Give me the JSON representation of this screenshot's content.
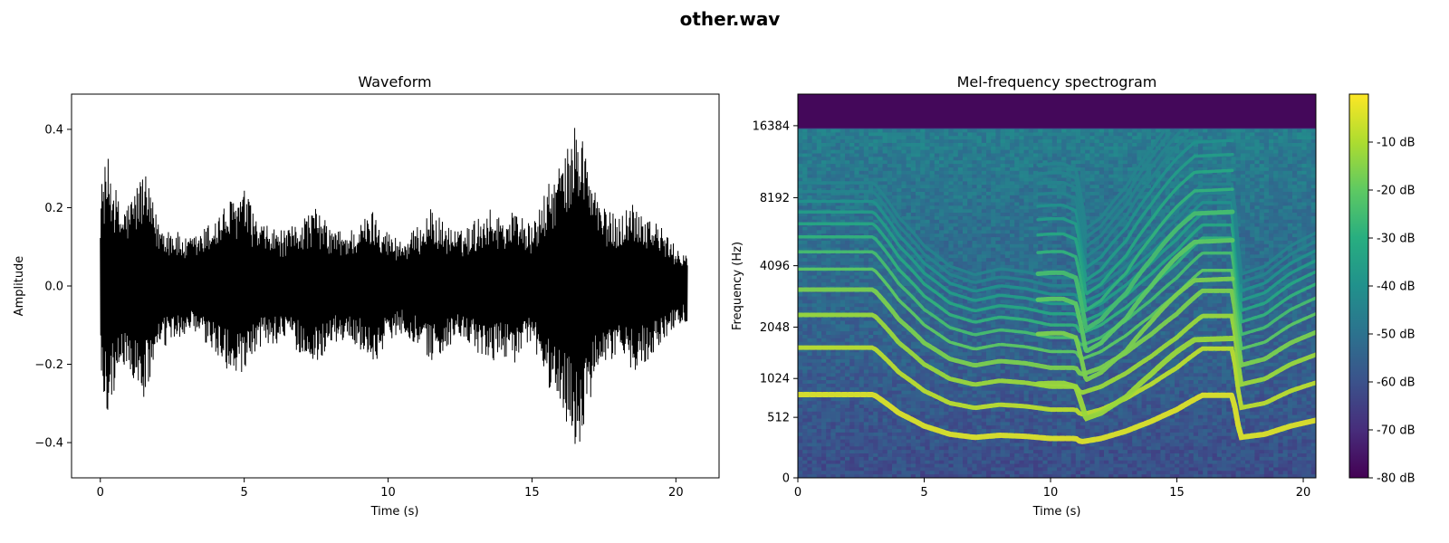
{
  "title": "other.wav",
  "chart_data": [
    {
      "type": "line",
      "title": "Waveform",
      "xlabel": "Time (s)",
      "ylabel": "Amplitude",
      "xlim": [
        -1.0,
        21.5
      ],
      "ylim": [
        -0.49,
        0.49
      ],
      "xticks": [
        0,
        5,
        10,
        15,
        20
      ],
      "yticks": [
        -0.4,
        -0.2,
        0.0,
        0.2,
        0.4
      ],
      "ytick_labels": [
        "−0.4",
        "−0.2",
        "0.0",
        "0.2",
        "0.4"
      ],
      "line_color": "#000000",
      "grid": false,
      "envelope": {
        "time": [
          0,
          0.1,
          0.3,
          0.7,
          1.0,
          1.5,
          2.0,
          2.5,
          3.0,
          3.5,
          4.0,
          4.5,
          5.0,
          5.5,
          6.0,
          6.5,
          7.0,
          7.5,
          8.0,
          8.5,
          9.0,
          9.5,
          10.0,
          10.5,
          11.0,
          11.5,
          12.0,
          12.5,
          13.0,
          13.5,
          14.0,
          14.5,
          15.0,
          15.5,
          16.0,
          16.3,
          16.6,
          16.9,
          17.2,
          17.5,
          18.0,
          18.5,
          19.0,
          19.5,
          20.0,
          20.4
        ],
        "amplitude": [
          0.24,
          0.3,
          0.33,
          0.2,
          0.22,
          0.3,
          0.17,
          0.15,
          0.12,
          0.14,
          0.18,
          0.22,
          0.25,
          0.16,
          0.15,
          0.14,
          0.18,
          0.2,
          0.15,
          0.14,
          0.16,
          0.2,
          0.14,
          0.12,
          0.15,
          0.2,
          0.16,
          0.14,
          0.17,
          0.2,
          0.18,
          0.2,
          0.15,
          0.25,
          0.32,
          0.36,
          0.45,
          0.34,
          0.25,
          0.2,
          0.18,
          0.22,
          0.19,
          0.15,
          0.1,
          0.09
        ]
      }
    },
    {
      "type": "heatmap",
      "title": "Mel-frequency spectrogram",
      "xlabel": "Time (s)",
      "ylabel": "Frequency (Hz)",
      "xlim": [
        0,
        20.5
      ],
      "xticks": [
        0,
        5,
        10,
        15,
        20
      ],
      "yticks": [
        0,
        512,
        1024,
        2048,
        4096,
        8192,
        16384
      ],
      "ylim": [
        0,
        22050
      ],
      "y_scale": "mel",
      "colormap": "viridis",
      "colorbar": {
        "range": [
          -80,
          0
        ],
        "ticks": [
          -10,
          -20,
          -30,
          -40,
          -50,
          -60,
          -70,
          -80
        ],
        "tick_labels": [
          "-10 dB",
          "-20 dB",
          "-30 dB",
          "-40 dB",
          "-50 dB",
          "-60 dB",
          "-70 dB",
          "-80 dB"
        ]
      },
      "fundamental_hz": {
        "time": [
          0,
          3.0,
          4.0,
          5.0,
          6.0,
          7.0,
          8.0,
          9.0,
          10.0,
          11.0,
          11.2,
          12.0,
          13.0,
          14.0,
          15.0,
          16.0,
          17.2,
          17.5,
          18.5,
          19.5,
          20.5
        ],
        "hz": [
          790,
          790,
          560,
          420,
          340,
          310,
          330,
          320,
          300,
          300,
          270,
          300,
          370,
          470,
          600,
          780,
          780,
          310,
          340,
          420,
          480
        ]
      },
      "fundamental_hz_2": {
        "time": [
          9.5,
          10.0,
          10.5,
          11.0,
          11.4,
          12.0,
          13.0,
          14.0,
          15.0,
          15.7,
          17.2
        ],
        "hz": [
          940,
          950,
          950,
          900,
          500,
          560,
          760,
          1100,
          1500,
          1750,
          1780
        ]
      }
    }
  ]
}
